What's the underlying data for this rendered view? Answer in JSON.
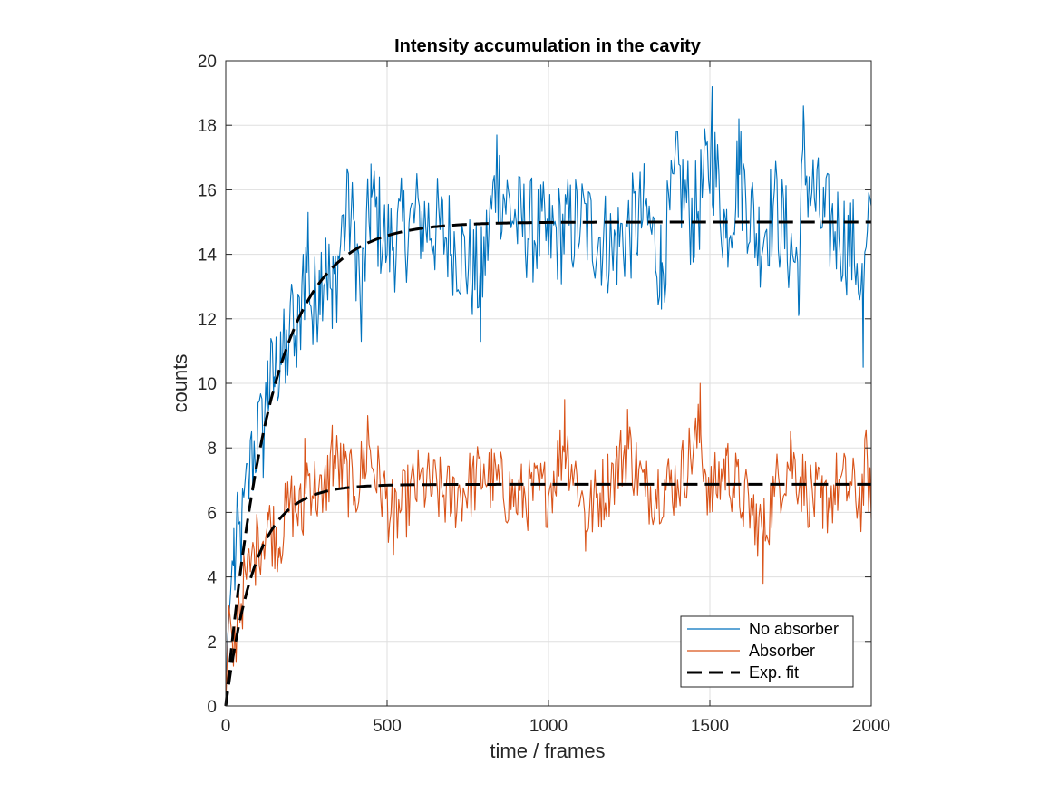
{
  "chart_data": {
    "type": "line",
    "title": "Intensity accumulation in the cavity",
    "xlabel": "time / frames",
    "ylabel": "counts",
    "xlim": [
      0,
      2000
    ],
    "ylim": [
      0,
      20
    ],
    "xticks": [
      0,
      500,
      1000,
      1500,
      2000
    ],
    "yticks": [
      0,
      2,
      4,
      6,
      8,
      10,
      12,
      14,
      16,
      18,
      20
    ],
    "grid": true,
    "legend": {
      "location": "bottom-right"
    },
    "colors": {
      "no_absorber": "#0072BD",
      "absorber": "#D95319",
      "fit": "#000000"
    },
    "series": [
      {
        "name": "No absorber",
        "style": "solid",
        "fit": {
          "asymptote": 15.0,
          "tau": 140
        },
        "anchors": [
          [
            0,
            0
          ],
          [
            5,
            2.0
          ],
          [
            15,
            3.5
          ],
          [
            25,
            5.5
          ],
          [
            35,
            6.5
          ],
          [
            50,
            6.0
          ],
          [
            60,
            7.0
          ],
          [
            80,
            8.5
          ],
          [
            100,
            9.4
          ],
          [
            115,
            8.2
          ],
          [
            130,
            10.7
          ],
          [
            150,
            10.2
          ],
          [
            170,
            11.6
          ],
          [
            185,
            10.0
          ],
          [
            200,
            12.5
          ],
          [
            220,
            10.5
          ],
          [
            240,
            14.0
          ],
          [
            255,
            15.3
          ],
          [
            270,
            11.2
          ],
          [
            290,
            13.5
          ],
          [
            310,
            14.5
          ],
          [
            330,
            11.7
          ],
          [
            360,
            15.2
          ],
          [
            380,
            16.5
          ],
          [
            400,
            15.0
          ],
          [
            420,
            11.3
          ],
          [
            450,
            16.8
          ],
          [
            500,
            14.0
          ],
          [
            600,
            15.5
          ],
          [
            700,
            14.0
          ],
          [
            790,
            11.3
          ],
          [
            840,
            17.7
          ],
          [
            900,
            15.0
          ],
          [
            1000,
            14.0
          ],
          [
            1100,
            15.0
          ],
          [
            1200,
            13.5
          ],
          [
            1300,
            15.5
          ],
          [
            1350,
            12.3
          ],
          [
            1400,
            17.8
          ],
          [
            1450,
            15.0
          ],
          [
            1507,
            19.2
          ],
          [
            1550,
            14.5
          ],
          [
            1590,
            18.2
          ],
          [
            1650,
            14.0
          ],
          [
            1700,
            16.0
          ],
          [
            1775,
            12.1
          ],
          [
            1790,
            18.6
          ],
          [
            1850,
            15.0
          ],
          [
            1900,
            14.5
          ],
          [
            1960,
            12.8
          ],
          [
            1975,
            10.5
          ],
          [
            2000,
            15.5
          ]
        ]
      },
      {
        "name": "Absorber",
        "style": "solid",
        "fit": {
          "asymptote": 6.87,
          "tau": 90
        },
        "anchors": [
          [
            0,
            0
          ],
          [
            10,
            3.1
          ],
          [
            25,
            1.6
          ],
          [
            40,
            3.5
          ],
          [
            60,
            4.2
          ],
          [
            80,
            4.7
          ],
          [
            100,
            5.5
          ],
          [
            130,
            6.0
          ],
          [
            165,
            4.6
          ],
          [
            200,
            6.5
          ],
          [
            240,
            5.3
          ],
          [
            245,
            8.3
          ],
          [
            300,
            6.0
          ],
          [
            330,
            8.7
          ],
          [
            400,
            6.5
          ],
          [
            440,
            9.0
          ],
          [
            520,
            4.7
          ],
          [
            600,
            7.0
          ],
          [
            700,
            6.0
          ],
          [
            800,
            7.5
          ],
          [
            900,
            6.0
          ],
          [
            1000,
            6.5
          ],
          [
            1050,
            9.5
          ],
          [
            1100,
            6.5
          ],
          [
            1115,
            4.8
          ],
          [
            1200,
            7.5
          ],
          [
            1245,
            9.2
          ],
          [
            1300,
            6.5
          ],
          [
            1400,
            7.0
          ],
          [
            1470,
            10.0
          ],
          [
            1500,
            6.0
          ],
          [
            1550,
            8.0
          ],
          [
            1600,
            6.0
          ],
          [
            1640,
            5.0
          ],
          [
            1665,
            3.8
          ],
          [
            1700,
            6.5
          ],
          [
            1750,
            8.5
          ],
          [
            1800,
            6.5
          ],
          [
            1850,
            5.5
          ],
          [
            1900,
            7.0
          ],
          [
            1970,
            6.0
          ],
          [
            1985,
            8.3
          ],
          [
            2000,
            5.8
          ]
        ]
      },
      {
        "name": "Exp. fit",
        "style": "dashed"
      }
    ]
  }
}
